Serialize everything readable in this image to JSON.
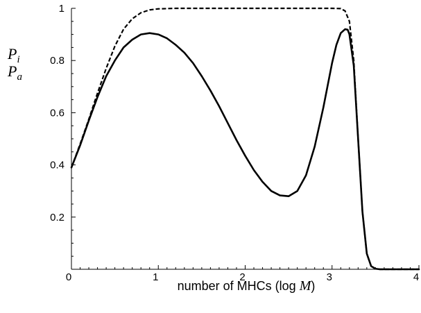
{
  "chart_data": {
    "type": "line",
    "title": "",
    "xlabel": {
      "prefix": "number of MHCs (log ",
      "variable": "M",
      "suffix": ")"
    },
    "y_labels": [
      {
        "symbol": "P",
        "subscript": "i"
      },
      {
        "symbol": "P",
        "subscript": "a"
      }
    ],
    "xlim": [
      0,
      4
    ],
    "ylim": [
      0,
      1
    ],
    "x_ticks": [
      0,
      1,
      2,
      3,
      4
    ],
    "x_tick_labels": [
      "0",
      "1",
      "2",
      "3",
      "4"
    ],
    "y_ticks": [
      0.2,
      0.4,
      0.6,
      0.8,
      1
    ],
    "y_tick_labels": [
      "0.2",
      "0.4",
      "0.6",
      "0.8",
      "1"
    ],
    "x_minor_step": 0.1,
    "y_minor_step": 0.05,
    "grid": false,
    "series": [
      {
        "style": "solid",
        "x": [
          0,
          0.1,
          0.2,
          0.3,
          0.4,
          0.5,
          0.6,
          0.7,
          0.8,
          0.9,
          1.0,
          1.1,
          1.2,
          1.3,
          1.4,
          1.5,
          1.6,
          1.7,
          1.8,
          1.9,
          2.0,
          2.1,
          2.2,
          2.3,
          2.4,
          2.5,
          2.6,
          2.7,
          2.8,
          2.9,
          3.0,
          3.05,
          3.1,
          3.15,
          3.18,
          3.2,
          3.25,
          3.3,
          3.35,
          3.4,
          3.45,
          3.5,
          3.55,
          3.6,
          3.7,
          3.8,
          3.9,
          4.0
        ],
        "y": [
          0.39,
          0.475,
          0.57,
          0.66,
          0.74,
          0.8,
          0.85,
          0.88,
          0.9,
          0.905,
          0.9,
          0.885,
          0.86,
          0.83,
          0.79,
          0.74,
          0.685,
          0.625,
          0.56,
          0.495,
          0.435,
          0.38,
          0.335,
          0.3,
          0.283,
          0.28,
          0.3,
          0.36,
          0.47,
          0.62,
          0.79,
          0.86,
          0.905,
          0.92,
          0.918,
          0.9,
          0.78,
          0.5,
          0.22,
          0.06,
          0.012,
          0.002,
          0.0,
          0.0,
          0.0,
          0.0,
          0.0,
          0.0
        ]
      },
      {
        "style": "dashed",
        "x": [
          0,
          0.1,
          0.2,
          0.3,
          0.4,
          0.5,
          0.6,
          0.7,
          0.8,
          0.9,
          1.0,
          1.2,
          1.5,
          2.0,
          2.5,
          3.0,
          3.1,
          3.15,
          3.2,
          3.25,
          3.3,
          3.35,
          3.4,
          3.45,
          3.5,
          3.55,
          3.6,
          3.7,
          3.8,
          3.9,
          4.0
        ],
        "y": [
          0.39,
          0.48,
          0.575,
          0.675,
          0.77,
          0.855,
          0.92,
          0.96,
          0.983,
          0.994,
          0.998,
          1.0,
          1.0,
          1.0,
          1.0,
          1.0,
          0.999,
          0.99,
          0.95,
          0.8,
          0.5,
          0.22,
          0.06,
          0.012,
          0.002,
          0.0,
          0.0,
          0.0,
          0.0,
          0.0,
          0.0
        ]
      }
    ]
  }
}
